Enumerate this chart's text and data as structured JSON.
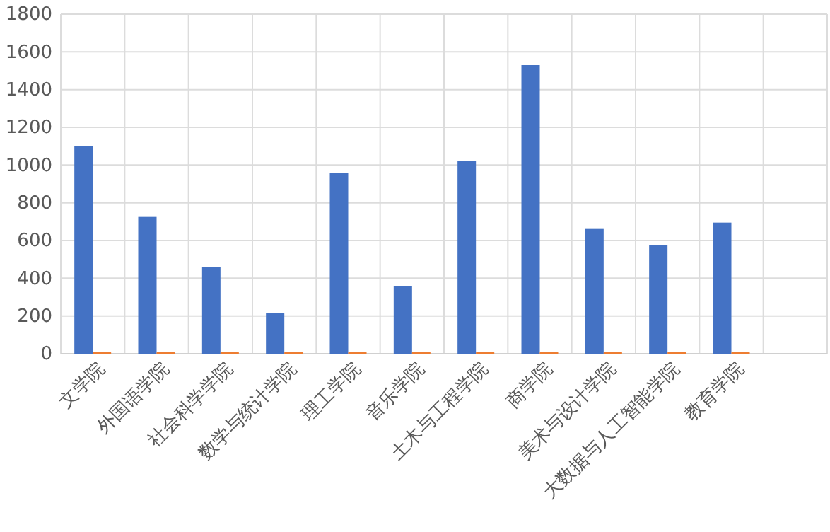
{
  "chart_data": {
    "type": "bar",
    "categories": [
      "文学院",
      "外国语学院",
      "社会科学学院",
      "数学与统计学院",
      "理工学院",
      "音乐学院",
      "土木与工程学院",
      "商学院",
      "美术与设计学院",
      "大数据与人工智能学院",
      "教育学院",
      null
    ],
    "series": [
      {
        "color": "#4472c4",
        "values": [
          1100,
          725,
          460,
          215,
          960,
          360,
          1020,
          1530,
          665,
          575,
          695,
          null
        ]
      },
      {
        "color": "#ed7d31",
        "values": [
          10,
          10,
          10,
          10,
          10,
          10,
          10,
          10,
          10,
          10,
          10,
          null
        ]
      }
    ],
    "ylim": [
      0,
      1800
    ],
    "yticks": [
      0,
      200,
      400,
      600,
      800,
      1000,
      1200,
      1400,
      1600,
      1800
    ],
    "grid": true
  }
}
